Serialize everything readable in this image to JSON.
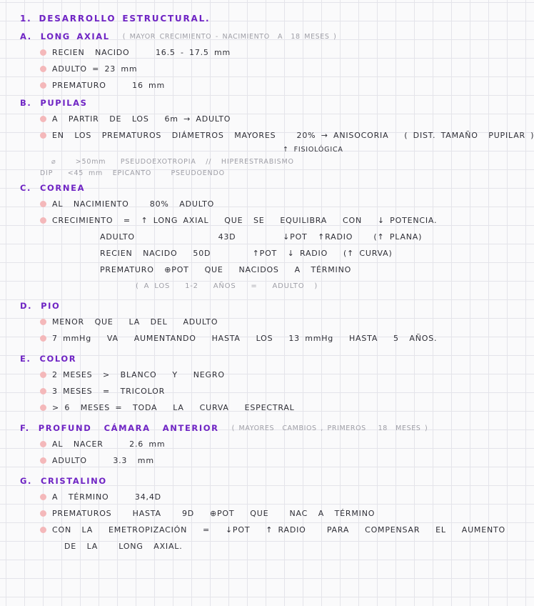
{
  "page": {
    "title_number": "1.",
    "title": "DESARROLLO ESTRUCTURAL."
  },
  "colors": {
    "heading_purple": "#6f24c4",
    "ink": "#2e2e36",
    "gray_note": "#9e9ea6",
    "bullet_pink": "#f4b8ba",
    "grid_line": "#e4e4ea",
    "paper": "#fafafb"
  },
  "sections": [
    {
      "letter": "A.",
      "heading": "LONG AXIAL",
      "note": "( MAYOR CRECIMIENTO - NACIMIENTO  A  18 MESES )",
      "spaced": false,
      "lines": [
        {
          "kind": "item",
          "text": "RECIEN  NACIDO     16.5 - 17.5 mm"
        },
        {
          "kind": "item",
          "text": "ADULTO = 23 mm"
        },
        {
          "kind": "item",
          "text": "PREMATURO     16 mm"
        }
      ]
    },
    {
      "letter": "B.",
      "heading": "PUPILAS",
      "note": "",
      "spaced": false,
      "lines": [
        {
          "kind": "item",
          "text": "A  PARTIR  DE  LOS   6m → ADULTO"
        },
        {
          "kind": "item",
          "text": "EN  LOS  PREMATUROS  DIÁMETROS  MAYORES    20% → ANISOCORIA   ( DIST. TAMAÑO  PUPILAR )"
        },
        {
          "kind": "annotation",
          "text": "↑ FISIOLÓGICA"
        },
        {
          "kind": "gray",
          "text": "⌀    >50mm   PSEUDOEXOTROPIA  //  HIPERESTRABISMO"
        },
        {
          "kind": "gray2",
          "text": "DIP   <45 mm  EPICANTO    PSEUDOENDO"
        }
      ]
    },
    {
      "letter": "C.",
      "heading": "CORNEA",
      "note": "",
      "spaced": false,
      "lines": [
        {
          "kind": "item",
          "text": "AL  NACIMIENTO    80%  ADULTO"
        },
        {
          "kind": "item",
          "text": "CRECIMIENTO  =  ↑ LONG AXIAL   QUE  SE   EQUILIBRA   CON   ↓ POTENCIA."
        },
        {
          "kind": "sub",
          "text": "ADULTO                43D         ↓POT  ↑RADIO    (↑ PLANA)"
        },
        {
          "kind": "sub",
          "text": "RECIEN  NACIDO   50D        ↑POT  ↓ RADIO   (↑ CURVA)"
        },
        {
          "kind": "sub",
          "text": "PREMATURO  ⊕POT   QUE   NACIDOS   A  TÉRMINO"
        },
        {
          "kind": "gray-center",
          "text": "( A LOS   1-2   AÑOS   =   ADULTO  )"
        }
      ]
    },
    {
      "letter": "D.",
      "heading": "PIO",
      "note": "",
      "spaced": true,
      "lines": [
        {
          "kind": "item",
          "text": "MENOR  QUE   LA  DEL   ADULTO"
        },
        {
          "kind": "item",
          "text": "7 mmHg   VA   AUMENTANDO   HASTA   LOS   13 mmHg   HASTA   5  AÑOS."
        }
      ]
    },
    {
      "letter": "E.",
      "heading": "COLOR",
      "note": "",
      "spaced": true,
      "lines": [
        {
          "kind": "item",
          "text": "2 MESES  >  BLANCO   Y   NEGRO"
        },
        {
          "kind": "item",
          "text": "3 MESES  =  TRICOLOR"
        },
        {
          "kind": "item",
          "text": "> 6  MESES =  TODA   LA   CURVA   ESPECTRAL"
        }
      ]
    },
    {
      "letter": "F.",
      "heading": "PROFUND  CÁMARA  ANTERIOR",
      "note": "( MAYORES  CAMBIOS , PRIMEROS   18  MESES )",
      "spaced": true,
      "lines": [
        {
          "kind": "item",
          "text": "AL  NACER     2.6 mm"
        },
        {
          "kind": "item",
          "text": "ADULTO     3.3  mm"
        }
      ]
    },
    {
      "letter": "G.",
      "heading": "CRISTALINO",
      "note": "",
      "spaced": true,
      "lines": [
        {
          "kind": "item",
          "text": "A  TÉRMINO     34,4D"
        },
        {
          "kind": "item",
          "text": "PREMATUROS    HASTA    9D   ⊕POT   QUE    NAC  A  TÉRMINO"
        },
        {
          "kind": "item",
          "text": "CON  LA   EMETROPIZACIÓN   =   ↓POT   ↑ RADIO    PARA   COMPENSAR   EL   AUMENTO"
        },
        {
          "kind": "cont",
          "text": "DE  LA    LONG  AXIAL."
        }
      ]
    }
  ]
}
